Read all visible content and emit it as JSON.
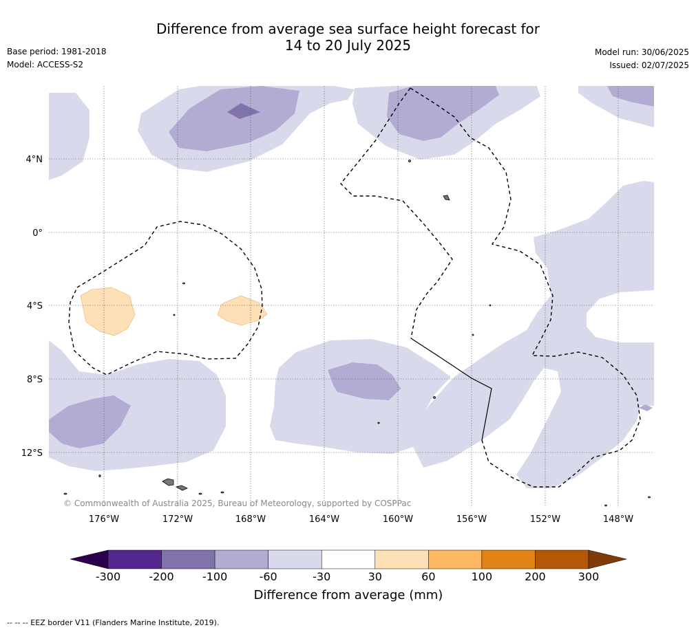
{
  "title_line1": "Difference from average sea surface height forecast for",
  "title_line2": "14 to 20 July 2025",
  "meta_left": [
    "Base period: 1981-2018",
    "Model: ACCESS-S2"
  ],
  "meta_right": [
    "Model run: 30/06/2025",
    "Issued: 02/07/2025"
  ],
  "map": {
    "lon_ticks": [
      "176°W",
      "172°W",
      "168°W",
      "164°W",
      "160°W",
      "156°W",
      "152°W",
      "148°W"
    ],
    "lat_ticks": [
      "4°N",
      "0°",
      "4°S",
      "8°S",
      "12°S"
    ],
    "copyright": "© Commonwealth of Australia 2025, Bureau of Meteorology, supported by COSPPac"
  },
  "colorbar": {
    "title": "Difference from average (mm)",
    "labels": [
      "-300",
      "-200",
      "-100",
      "-60",
      "-30",
      "30",
      "60",
      "100",
      "200",
      "300"
    ],
    "colors": [
      "#54278f",
      "#8073ac",
      "#b2abd2",
      "#d8daeb",
      "#ffffff",
      "#fee0b6",
      "#fdb863",
      "#e08214",
      "#b35806"
    ],
    "under_color": "#2d004b",
    "over_color": "#7f3b08"
  },
  "footnote": "-- -- -- EEZ border V11 (Flanders Marine Institute, 2019)."
}
